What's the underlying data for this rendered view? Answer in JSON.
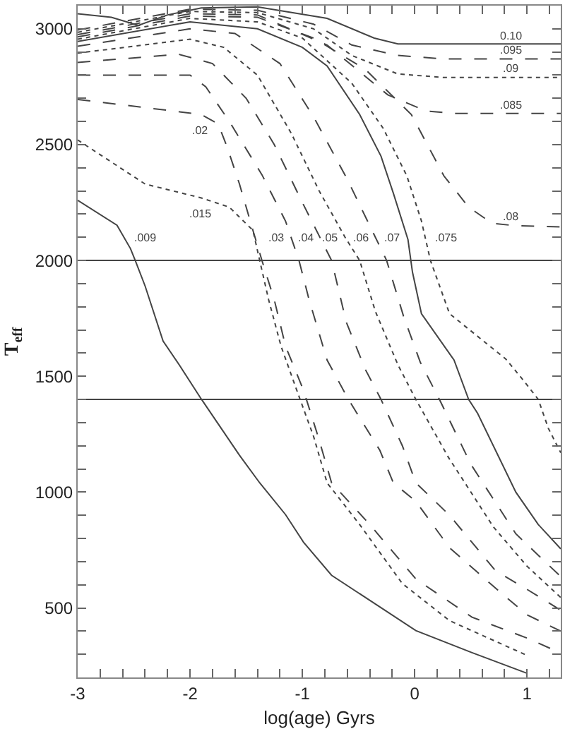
{
  "chart_data": {
    "type": "line",
    "xlabel": "log(age) Gyrs",
    "ylabel": "T$_{eff}$",
    "xlim": [
      -3,
      1.3
    ],
    "ylim": [
      200,
      3100
    ],
    "xticks": [
      -3,
      {
        "value": -2.8,
        "label": null
      },
      {
        "value": -2.6,
        "label": null
      },
      {
        "value": -2.4,
        "label": null
      },
      {
        "value": -2.2,
        "label": null
      },
      -2,
      {
        "value": -1.8,
        "label": null
      },
      {
        "value": -1.6,
        "label": null
      },
      {
        "value": -1.4,
        "label": null
      },
      {
        "value": -1.2,
        "label": null
      },
      -1,
      {
        "value": -0.8,
        "label": null
      },
      {
        "value": -0.6,
        "label": null
      },
      {
        "value": -0.4,
        "label": null
      },
      {
        "value": -0.2,
        "label": null
      },
      0,
      {
        "value": 0.2,
        "label": null
      },
      {
        "value": 0.4,
        "label": null
      },
      {
        "value": 0.6,
        "label": null
      },
      {
        "value": 0.8,
        "label": null
      },
      1,
      {
        "value": 1.2,
        "label": null
      }
    ],
    "yticks": [
      {
        "value": 300,
        "label": null
      },
      {
        "value": 400,
        "label": null
      },
      500,
      {
        "value": 600,
        "label": null
      },
      {
        "value": 700,
        "label": null
      },
      {
        "value": 800,
        "label": null
      },
      {
        "value": 900,
        "label": null
      },
      1000,
      {
        "value": 1100,
        "label": null
      },
      {
        "value": 1200,
        "label": null
      },
      {
        "value": 1300,
        "label": null
      },
      {
        "value": 1400,
        "label": null
      },
      1500,
      {
        "value": 1600,
        "label": null
      },
      {
        "value": 1700,
        "label": null
      },
      {
        "value": 1800,
        "label": null
      },
      {
        "value": 1900,
        "label": null
      },
      2000,
      {
        "value": 2100,
        "label": null
      },
      {
        "value": 2200,
        "label": null
      },
      {
        "value": 2300,
        "label": null
      },
      {
        "value": 2400,
        "label": null
      },
      2500,
      {
        "value": 2600,
        "label": null
      },
      {
        "value": 2700,
        "label": null
      },
      {
        "value": 2800,
        "label": null
      },
      {
        "value": 2900,
        "label": null
      },
      3000
    ],
    "grid": false,
    "legend": false,
    "marker": "none",
    "series": [
      {
        "name": ".009",
        "color": "#444444",
        "line_style": "solid",
        "x": [
          -3,
          -2.65,
          -2.53,
          -2.49,
          -2.4,
          -2.24,
          -2.09,
          -1.9,
          -1.56,
          -1.38,
          -1.15,
          -0.99,
          -0.74,
          -0.31,
          0.01,
          0.51,
          1.0
        ],
        "values": [
          2260,
          2152,
          2051,
          2003,
          1890,
          1652,
          1545,
          1402,
          1159,
          1040,
          903,
          784,
          641,
          504,
          402,
          307,
          218
        ]
      },
      {
        "name": ".015",
        "color": "#444444",
        "line_style": "dotted",
        "x": [
          -3,
          -2.4,
          -1.9,
          -1.65,
          -1.44,
          -1.38,
          -1.3,
          -1.19,
          -1.05,
          -0.9,
          -0.78,
          -0.49,
          -0.11,
          0.31,
          1.0
        ],
        "values": [
          2520,
          2330,
          2270,
          2230,
          2130,
          2000,
          1830,
          1630,
          1440,
          1240,
          1040,
          860,
          605,
          445,
          295
        ]
      },
      {
        "name": ".02",
        "color": "#444444",
        "line_style": "dashed",
        "x": [
          -3,
          -2.4,
          -1.9,
          -1.75,
          -1.67,
          -1.56,
          -1.44,
          -1.36,
          -1.25,
          -1.15,
          -0.99,
          -0.86,
          -0.74,
          -0.4,
          0.01,
          0.51,
          1.0,
          1.3
        ],
        "values": [
          2695,
          2660,
          2630,
          2590,
          2490,
          2330,
          2130,
          2000,
          1830,
          1630,
          1440,
          1240,
          1040,
          860,
          625,
          460,
          370,
          305
        ]
      },
      {
        "name": ".03",
        "color": "#444444",
        "line_style": "dashed",
        "x": [
          -3,
          -2.0,
          -1.86,
          -1.65,
          -1.36,
          -1.15,
          -1.03,
          -0.94,
          -0.78,
          -0.59,
          -0.31,
          -0.19,
          0.01,
          0.31,
          0.72,
          1.0,
          1.3
        ],
        "values": [
          2800,
          2800,
          2750,
          2600,
          2370,
          2170,
          2000,
          1830,
          1570,
          1400,
          1180,
          1040,
          960,
          760,
          585,
          470,
          400
        ]
      },
      {
        "name": ".04",
        "color": "#444444",
        "line_style": "dashed",
        "x": [
          -3,
          -2.1,
          -1.8,
          -1.5,
          -1.25,
          -1.0,
          -0.74,
          -0.61,
          -0.44,
          -0.3,
          -0.11,
          0.01,
          0.31,
          0.72,
          1.0,
          1.3
        ],
        "values": [
          2855,
          2890,
          2850,
          2700,
          2500,
          2250,
          2000,
          1735,
          1530,
          1400,
          1200,
          1040,
          900,
          660,
          580,
          490
        ]
      },
      {
        "name": ".05",
        "color": "#444444",
        "line_style": "dotted",
        "x": [
          -3,
          -2.0,
          -1.7,
          -1.4,
          -1.1,
          -0.85,
          -0.62,
          -0.49,
          -0.35,
          -0.15,
          0.01,
          0.3,
          0.7,
          1.0,
          1.3
        ],
        "values": [
          2895,
          2955,
          2920,
          2800,
          2550,
          2300,
          2100,
          2000,
          1780,
          1550,
          1400,
          1150,
          850,
          680,
          545
        ]
      },
      {
        "name": ".06",
        "color": "#444444",
        "line_style": "dashed",
        "x": [
          -3,
          -2.0,
          -1.6,
          -1.2,
          -0.9,
          -0.6,
          -0.4,
          -0.25,
          -0.1,
          0.05,
          0.22,
          0.5,
          0.9,
          1.3
        ],
        "values": [
          2925,
          3000,
          2980,
          2850,
          2620,
          2350,
          2150,
          2000,
          1760,
          1560,
          1400,
          1120,
          820,
          635
        ]
      },
      {
        "name": ".07",
        "color": "#444444",
        "line_style": "solid",
        "x": [
          -3,
          -2.0,
          -1.4,
          -1.0,
          -0.78,
          -0.49,
          -0.3,
          -0.19,
          -0.06,
          -0.02,
          0.06,
          0.35,
          0.48,
          0.56,
          0.9,
          1.1,
          1.3
        ],
        "values": [
          2945,
          3030,
          3000,
          2920,
          2840,
          2630,
          2450,
          2290,
          2090,
          1950,
          1770,
          1570,
          1400,
          1340,
          1000,
          860,
          755
        ]
      },
      {
        "name": ".075",
        "color": "#444444",
        "line_style": "dotted",
        "x": [
          -3,
          -2.0,
          -1.4,
          -1.0,
          -0.56,
          -0.28,
          -0.07,
          0.06,
          0.14,
          0.31,
          0.81,
          0.98,
          1.1,
          1.19,
          1.3
        ],
        "values": [
          2955,
          3045,
          3030,
          2960,
          2765,
          2570,
          2365,
          2170,
          2000,
          1770,
          1575,
          1475,
          1400,
          1275,
          1170
        ]
      },
      {
        "name": ".08",
        "color": "#444444",
        "line_style": "dashed",
        "x": [
          -3,
          -2.0,
          -1.4,
          -0.9,
          -0.44,
          -0.03,
          0.26,
          0.48,
          0.69,
          0.9,
          1.3
        ],
        "values": [
          2965,
          3055,
          3050,
          2960,
          2825,
          2630,
          2365,
          2230,
          2160,
          2150,
          2145
        ]
      },
      {
        "name": ".085",
        "color": "#444444",
        "line_style": "dashed",
        "x": [
          -3,
          -2.0,
          -1.4,
          -0.78,
          -0.24,
          0.1,
          0.35,
          1.3
        ],
        "values": [
          2975,
          3065,
          3060,
          2930,
          2715,
          2645,
          2635,
          2635
        ]
      },
      {
        "name": ".09",
        "color": "#444444",
        "line_style": "dotted",
        "x": [
          -3,
          -2.0,
          -1.4,
          -0.9,
          -0.56,
          -0.15,
          0.26,
          1.3
        ],
        "values": [
          2985,
          3075,
          3070,
          3000,
          2885,
          2805,
          2790,
          2790
        ]
      },
      {
        "name": ".095",
        "color": "#444444",
        "line_style": "dashed",
        "x": [
          -3,
          -2.0,
          -1.4,
          -0.9,
          -0.56,
          -0.15,
          0.26,
          1.3
        ],
        "values": [
          2995,
          3085,
          3080,
          3020,
          2930,
          2885,
          2870,
          2870
        ]
      },
      {
        "name": "0.10",
        "color": "#444444",
        "line_style": "solid",
        "x": [
          -3,
          -2.7,
          -2.46,
          -2.2,
          -1.9,
          -1.4,
          -0.78,
          -0.36,
          -0.15,
          1.3
        ],
        "values": [
          3065,
          3050,
          3015,
          3060,
          3090,
          3095,
          3045,
          2960,
          2935,
          2935
        ]
      }
    ],
    "ref_lines": [
      {
        "axis": "y",
        "value": 2000,
        "color": "#444444",
        "line_style": "solid"
      },
      {
        "axis": "y",
        "value": 1400,
        "color": "#444444",
        "line_style": "solid"
      }
    ]
  }
}
